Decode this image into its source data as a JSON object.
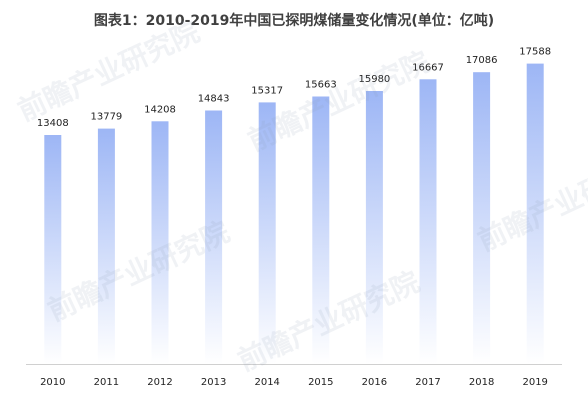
{
  "chart_data": {
    "type": "bar",
    "title": "图表1：2010-2019年中国已探明煤储量变化情况(单位：亿吨)",
    "categories": [
      "2010",
      "2011",
      "2012",
      "2013",
      "2014",
      "2015",
      "2016",
      "2017",
      "2018",
      "2019"
    ],
    "values": [
      13408,
      13779,
      14208,
      14843,
      15317,
      15663,
      15980,
      16667,
      17086,
      17588
    ],
    "xlabel": "",
    "ylabel": "",
    "ylim": [
      0,
      18500
    ],
    "grid": false,
    "legend": "none",
    "colors": {
      "bar_top": "#9db6f5",
      "bar_bottom": "#ffffff",
      "text": "#222222",
      "axis": "#d0d0d0"
    }
  },
  "watermark": "前瞻产业研究院"
}
